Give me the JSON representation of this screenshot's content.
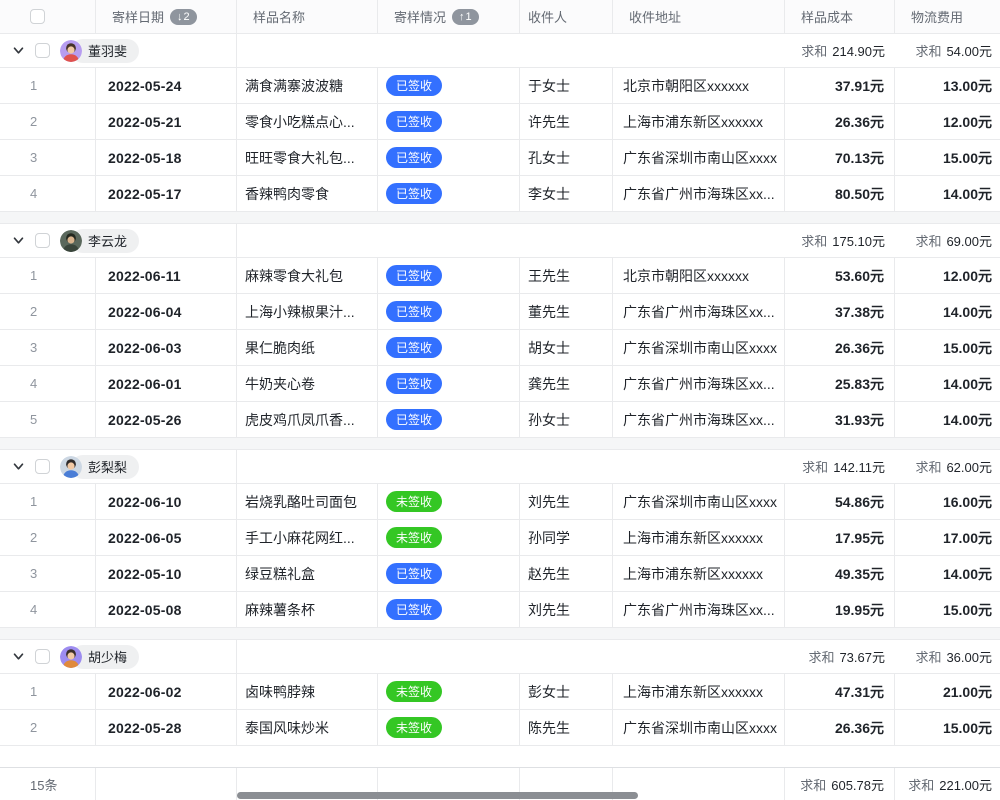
{
  "table": {
    "sum_label": "求和",
    "columns": [
      {
        "label": "寄样日期",
        "sort_arrow": "↓",
        "sort_num": "2"
      },
      {
        "label": "样品名称"
      },
      {
        "label": "寄样情况",
        "sort_arrow": "↑",
        "sort_num": "1"
      },
      {
        "label": "收件人"
      },
      {
        "label": "收件地址"
      },
      {
        "label": "样品成本"
      },
      {
        "label": "物流费用"
      }
    ],
    "status_colors": {
      "已签收": "#3370ff",
      "未签收": "#34c724"
    },
    "groups": [
      {
        "name": "董羽斐",
        "avatar": {
          "bg": "#b79df0",
          "hair": "#453228",
          "skin": "#f1c9a5",
          "cloth": "#e0524e"
        },
        "cost_sum": "214.90元",
        "logistics_sum": "54.00元",
        "rows": [
          {
            "index": "1",
            "date": "2022-05-24",
            "name": "满食满寨波波糖",
            "status": "已签收",
            "recipient": "于女士",
            "address": "北京市朝阳区xxxxxx",
            "cost": "37.91元",
            "logistics": "13.00元"
          },
          {
            "index": "2",
            "date": "2022-05-21",
            "name": "零食小吃糕点心...",
            "status": "已签收",
            "recipient": "许先生",
            "address": "上海市浦东新区xxxxxx",
            "cost": "26.36元",
            "logistics": "12.00元"
          },
          {
            "index": "3",
            "date": "2022-05-18",
            "name": "旺旺零食大礼包...",
            "status": "已签收",
            "recipient": "孔女士",
            "address": "广东省深圳市南山区xxxx",
            "cost": "70.13元",
            "logistics": "15.00元"
          },
          {
            "index": "4",
            "date": "2022-05-17",
            "name": "香辣鸭肉零食",
            "status": "已签收",
            "recipient": "李女士",
            "address": "广东省广州市海珠区xx...",
            "cost": "80.50元",
            "logistics": "14.00元"
          }
        ]
      },
      {
        "name": "李云龙",
        "avatar": {
          "bg": "#5a685c",
          "hair": "#23281f",
          "skin": "#d8b48e",
          "cloth": "#39453b"
        },
        "cost_sum": "175.10元",
        "logistics_sum": "69.00元",
        "rows": [
          {
            "index": "1",
            "date": "2022-06-11",
            "name": "麻辣零食大礼包",
            "status": "已签收",
            "recipient": "王先生",
            "address": "北京市朝阳区xxxxxx",
            "cost": "53.60元",
            "logistics": "12.00元"
          },
          {
            "index": "2",
            "date": "2022-06-04",
            "name": "上海小辣椒果汁...",
            "status": "已签收",
            "recipient": "董先生",
            "address": "广东省广州市海珠区xx...",
            "cost": "37.38元",
            "logistics": "14.00元"
          },
          {
            "index": "3",
            "date": "2022-06-03",
            "name": "果仁脆肉纸",
            "status": "已签收",
            "recipient": "胡女士",
            "address": "广东省深圳市南山区xxxx",
            "cost": "26.36元",
            "logistics": "15.00元"
          },
          {
            "index": "4",
            "date": "2022-06-01",
            "name": "牛奶夹心卷",
            "status": "已签收",
            "recipient": "龚先生",
            "address": "广东省广州市海珠区xx...",
            "cost": "25.83元",
            "logistics": "14.00元"
          },
          {
            "index": "5",
            "date": "2022-05-26",
            "name": "虎皮鸡爪凤爪香...",
            "status": "已签收",
            "recipient": "孙女士",
            "address": "广东省广州市海珠区xx...",
            "cost": "31.93元",
            "logistics": "14.00元"
          }
        ]
      },
      {
        "name": "彭梨梨",
        "avatar": {
          "bg": "#ccd7e3",
          "hair": "#2e2a2a",
          "skin": "#f1c9a5",
          "cloth": "#4a7dd6"
        },
        "cost_sum": "142.11元",
        "logistics_sum": "62.00元",
        "rows": [
          {
            "index": "1",
            "date": "2022-06-10",
            "name": "岩烧乳酪吐司面包",
            "status": "未签收",
            "recipient": "刘先生",
            "address": "广东省深圳市南山区xxxx",
            "cost": "54.86元",
            "logistics": "16.00元"
          },
          {
            "index": "2",
            "date": "2022-06-05",
            "name": "手工小麻花网红...",
            "status": "未签收",
            "recipient": "孙同学",
            "address": "上海市浦东新区xxxxxx",
            "cost": "17.95元",
            "logistics": "17.00元"
          },
          {
            "index": "3",
            "date": "2022-05-10",
            "name": "绿豆糕礼盒",
            "status": "已签收",
            "recipient": "赵先生",
            "address": "上海市浦东新区xxxxxx",
            "cost": "49.35元",
            "logistics": "14.00元"
          },
          {
            "index": "4",
            "date": "2022-05-08",
            "name": "麻辣薯条杯",
            "status": "已签收",
            "recipient": "刘先生",
            "address": "广东省广州市海珠区xx...",
            "cost": "19.95元",
            "logistics": "15.00元"
          }
        ]
      },
      {
        "name": "胡少梅",
        "avatar": {
          "bg": "#9d8cf0",
          "hair": "#3a2e2a",
          "skin": "#f1c9a5",
          "cloth": "#e08a3c"
        },
        "cost_sum": "73.67元",
        "logistics_sum": "36.00元",
        "rows": [
          {
            "index": "1",
            "date": "2022-06-02",
            "name": "卤味鸭脖辣",
            "status": "未签收",
            "recipient": "彭女士",
            "address": "上海市浦东新区xxxxxx",
            "cost": "47.31元",
            "logistics": "21.00元"
          },
          {
            "index": "2",
            "date": "2022-05-28",
            "name": "泰国风味炒米",
            "status": "未签收",
            "recipient": "陈先生",
            "address": "广东省深圳市南山区xxxx",
            "cost": "26.36元",
            "logistics": "15.00元"
          }
        ]
      }
    ],
    "footer": {
      "count": "15条",
      "cost_sum": "605.78元",
      "logistics_sum": "221.00元"
    }
  }
}
